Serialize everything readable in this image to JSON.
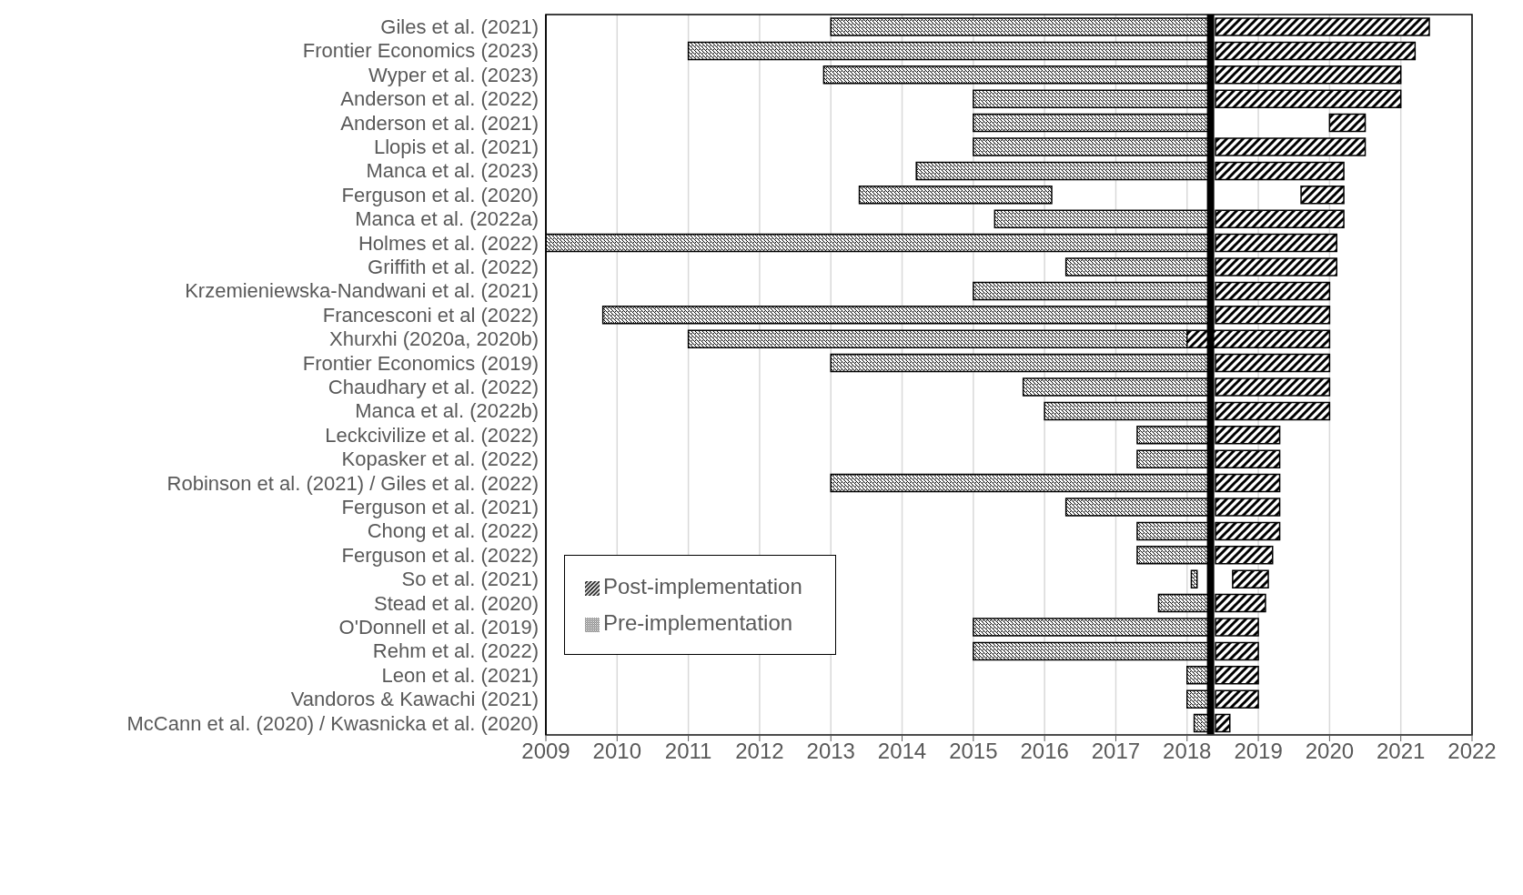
{
  "chart_data": {
    "type": "bar",
    "orientation": "horizontal",
    "categories": [
      "Giles et al. (2021)",
      "Frontier Economics (2023)",
      "Wyper et al. (2023)",
      "Anderson et al. (2022)",
      "Anderson et al. (2021)",
      "Llopis et al. (2021)",
      "Manca et al. (2023)",
      "Ferguson et al. (2020)",
      "Manca et al. (2022a)",
      "Holmes et al. (2022)",
      "Griffith et al. (2022)",
      "Krzemieniewska-Nandwani et al. (2021)",
      "Francesconi et al (2022)",
      "Xhurxhi (2020a, 2020b)",
      "Frontier Economics (2019)",
      "Chaudhary et al. (2022)",
      "Manca et al. (2022b)",
      "Leckcivilize et al. (2022)",
      "Kopasker et al. (2022)",
      "Robinson et al. (2021) / Giles et al. (2022)",
      "Ferguson et al. (2021)",
      "Chong et al. (2022)",
      "Ferguson et al. (2022)",
      "So et al. (2021)",
      "Stead et al. (2020)",
      "O'Donnell et al. (2019)",
      "Rehm et al. (2022)",
      "Leon et al. (2021)",
      "Vandoros & Kawachi (2021)",
      "McCann et al. (2020) / Kwasnicka et al. (2020)"
    ],
    "series": [
      {
        "name": "Pre-implementation",
        "color": "#000000",
        "base": [
          2013.0,
          2011.0,
          2012.9,
          2015.0,
          2015.0,
          2015.0,
          2014.2,
          2013.4,
          2015.3,
          2009.0,
          2016.3,
          2015.0,
          2009.8,
          2011.0,
          2013.0,
          2015.7,
          2016.0,
          2017.3,
          2017.3,
          2013.0,
          2016.3,
          2017.3,
          2017.3,
          2018.06,
          2017.6,
          2015.0,
          2015.0,
          2018.0,
          2018.0,
          2018.1
        ],
        "values": [
          5.3,
          7.3,
          5.4,
          3.3,
          3.3,
          3.3,
          4.1,
          2.7,
          3.0,
          9.3,
          2.0,
          3.3,
          8.5,
          7.0,
          5.3,
          2.6,
          2.3,
          1.0,
          1.0,
          5.3,
          2.0,
          1.0,
          1.0,
          0.08,
          0.7,
          3.3,
          3.3,
          0.3,
          0.3,
          0.2
        ]
      },
      {
        "name": "Post-implementation",
        "color": "#000000",
        "base": [
          2018.4,
          2018.4,
          2018.4,
          2018.4,
          2020.0,
          2018.4,
          2018.4,
          2019.6,
          2018.4,
          2018.4,
          2018.4,
          2018.4,
          2018.4,
          2018.0,
          2018.4,
          2018.4,
          2018.4,
          2018.4,
          2018.4,
          2018.4,
          2018.4,
          2018.4,
          2018.4,
          2018.64,
          2018.4,
          2018.4,
          2018.4,
          2018.4,
          2018.4,
          2018.4
        ],
        "values": [
          3.0,
          2.8,
          2.6,
          2.6,
          0.5,
          2.1,
          1.8,
          0.6,
          1.8,
          1.7,
          1.7,
          1.6,
          1.6,
          2.0,
          1.6,
          1.6,
          1.6,
          0.9,
          0.9,
          0.9,
          0.9,
          0.9,
          0.8,
          0.5,
          0.7,
          0.6,
          0.6,
          0.6,
          0.6,
          0.2
        ]
      }
    ],
    "xlim": [
      2009,
      2022
    ],
    "xticks": [
      2009,
      2010,
      2011,
      2012,
      2013,
      2014,
      2015,
      2016,
      2017,
      2018,
      2019,
      2020,
      2021,
      2022
    ],
    "ref_lines": [
      {
        "axis": "x",
        "value": 2018.33,
        "color": "#000000"
      }
    ],
    "grid": "x",
    "legend": "bottom left"
  }
}
